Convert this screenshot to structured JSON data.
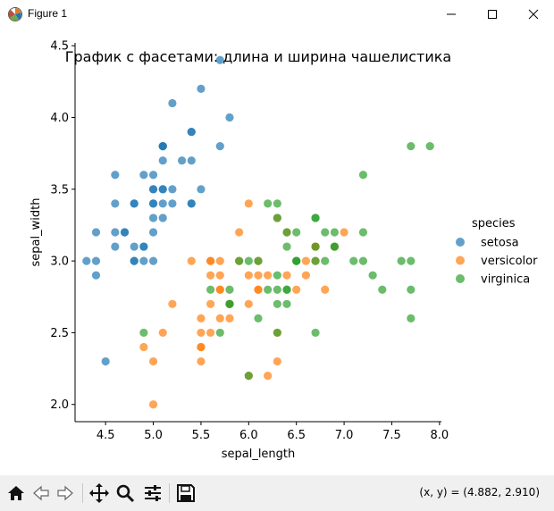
{
  "window": {
    "title": "Figure 1"
  },
  "toolbar": {
    "coords": "(x, y) = (4.882, 2.910)"
  },
  "colors": {
    "setosa": "#1f77b4",
    "versicolor": "#ff7f0e",
    "virginica": "#2ca02c"
  },
  "chart_data": {
    "type": "scatter",
    "title": "График с фасетами: длина и ширина чашелистика",
    "xlabel": "sepal_length",
    "ylabel": "sepal_width",
    "xlim": [
      4.18,
      8.02
    ],
    "ylim": [
      1.88,
      4.52
    ],
    "xticks": [
      "4.5",
      "5.0",
      "5.5",
      "6.0",
      "6.5",
      "7.0",
      "7.5",
      "8.0"
    ],
    "yticks": [
      "2.0",
      "2.5",
      "3.0",
      "3.5",
      "4.0",
      "4.5"
    ],
    "legend_title": "species",
    "legend_position": "right",
    "series": [
      {
        "name": "setosa",
        "points": [
          [
            5.1,
            3.5
          ],
          [
            4.9,
            3.0
          ],
          [
            4.7,
            3.2
          ],
          [
            4.6,
            3.1
          ],
          [
            5.0,
            3.6
          ],
          [
            5.4,
            3.9
          ],
          [
            4.6,
            3.4
          ],
          [
            5.0,
            3.4
          ],
          [
            4.4,
            2.9
          ],
          [
            4.9,
            3.1
          ],
          [
            5.4,
            3.7
          ],
          [
            4.8,
            3.4
          ],
          [
            4.8,
            3.0
          ],
          [
            4.3,
            3.0
          ],
          [
            5.8,
            4.0
          ],
          [
            5.7,
            4.4
          ],
          [
            5.4,
            3.9
          ],
          [
            5.1,
            3.5
          ],
          [
            5.7,
            3.8
          ],
          [
            5.1,
            3.8
          ],
          [
            5.4,
            3.4
          ],
          [
            5.1,
            3.7
          ],
          [
            4.6,
            3.6
          ],
          [
            5.1,
            3.3
          ],
          [
            4.8,
            3.4
          ],
          [
            5.0,
            3.0
          ],
          [
            5.0,
            3.4
          ],
          [
            5.2,
            3.5
          ],
          [
            5.2,
            3.4
          ],
          [
            4.7,
            3.2
          ],
          [
            4.8,
            3.1
          ],
          [
            5.4,
            3.4
          ],
          [
            5.2,
            4.1
          ],
          [
            5.5,
            4.2
          ],
          [
            4.9,
            3.1
          ],
          [
            5.0,
            3.2
          ],
          [
            5.5,
            3.5
          ],
          [
            4.9,
            3.6
          ],
          [
            4.4,
            3.0
          ],
          [
            5.1,
            3.4
          ],
          [
            5.0,
            3.5
          ],
          [
            4.5,
            2.3
          ],
          [
            4.4,
            3.2
          ],
          [
            5.0,
            3.5
          ],
          [
            5.1,
            3.8
          ],
          [
            4.8,
            3.0
          ],
          [
            5.1,
            3.8
          ],
          [
            4.6,
            3.2
          ],
          [
            5.3,
            3.7
          ],
          [
            5.0,
            3.3
          ]
        ]
      },
      {
        "name": "versicolor",
        "points": [
          [
            7.0,
            3.2
          ],
          [
            6.4,
            3.2
          ],
          [
            6.9,
            3.1
          ],
          [
            5.5,
            2.3
          ],
          [
            6.5,
            2.8
          ],
          [
            5.7,
            2.8
          ],
          [
            6.3,
            3.3
          ],
          [
            4.9,
            2.4
          ],
          [
            6.6,
            2.9
          ],
          [
            5.2,
            2.7
          ],
          [
            5.0,
            2.0
          ],
          [
            5.9,
            3.0
          ],
          [
            6.0,
            2.2
          ],
          [
            6.1,
            2.9
          ],
          [
            5.6,
            2.9
          ],
          [
            6.7,
            3.1
          ],
          [
            5.6,
            3.0
          ],
          [
            5.8,
            2.7
          ],
          [
            6.2,
            2.2
          ],
          [
            5.6,
            2.5
          ],
          [
            5.9,
            3.2
          ],
          [
            6.1,
            2.8
          ],
          [
            6.3,
            2.5
          ],
          [
            6.1,
            2.8
          ],
          [
            6.4,
            2.9
          ],
          [
            6.6,
            3.0
          ],
          [
            6.8,
            2.8
          ],
          [
            6.7,
            3.0
          ],
          [
            6.0,
            2.9
          ],
          [
            5.7,
            2.6
          ],
          [
            5.5,
            2.4
          ],
          [
            5.5,
            2.4
          ],
          [
            5.8,
            2.7
          ],
          [
            6.0,
            2.7
          ],
          [
            5.4,
            3.0
          ],
          [
            6.0,
            3.4
          ],
          [
            6.7,
            3.1
          ],
          [
            6.3,
            2.3
          ],
          [
            5.6,
            3.0
          ],
          [
            5.5,
            2.5
          ],
          [
            5.5,
            2.6
          ],
          [
            6.1,
            3.0
          ],
          [
            5.8,
            2.6
          ],
          [
            5.0,
            2.3
          ],
          [
            5.6,
            2.7
          ],
          [
            5.7,
            3.0
          ],
          [
            5.7,
            2.9
          ],
          [
            6.2,
            2.9
          ],
          [
            5.1,
            2.5
          ],
          [
            5.7,
            2.8
          ]
        ]
      },
      {
        "name": "virginica",
        "points": [
          [
            6.3,
            3.3
          ],
          [
            5.8,
            2.7
          ],
          [
            7.1,
            3.0
          ],
          [
            6.3,
            2.9
          ],
          [
            6.5,
            3.0
          ],
          [
            7.6,
            3.0
          ],
          [
            4.9,
            2.5
          ],
          [
            7.3,
            2.9
          ],
          [
            6.7,
            2.5
          ],
          [
            7.2,
            3.6
          ],
          [
            6.5,
            3.2
          ],
          [
            6.4,
            2.7
          ],
          [
            6.8,
            3.0
          ],
          [
            5.7,
            2.5
          ],
          [
            5.8,
            2.8
          ],
          [
            6.4,
            3.2
          ],
          [
            6.5,
            3.0
          ],
          [
            7.7,
            3.8
          ],
          [
            7.7,
            2.6
          ],
          [
            6.0,
            2.2
          ],
          [
            6.9,
            3.2
          ],
          [
            5.6,
            2.8
          ],
          [
            7.7,
            2.8
          ],
          [
            6.3,
            2.7
          ],
          [
            6.7,
            3.3
          ],
          [
            7.2,
            3.2
          ],
          [
            6.2,
            2.8
          ],
          [
            6.1,
            3.0
          ],
          [
            6.4,
            2.8
          ],
          [
            7.2,
            3.0
          ],
          [
            7.4,
            2.8
          ],
          [
            7.9,
            3.8
          ],
          [
            6.4,
            2.8
          ],
          [
            6.3,
            2.8
          ],
          [
            6.1,
            2.6
          ],
          [
            7.7,
            3.0
          ],
          [
            6.3,
            3.4
          ],
          [
            6.4,
            3.1
          ],
          [
            6.0,
            3.0
          ],
          [
            6.9,
            3.1
          ],
          [
            6.7,
            3.1
          ],
          [
            6.9,
            3.1
          ],
          [
            5.8,
            2.7
          ],
          [
            6.8,
            3.2
          ],
          [
            6.7,
            3.3
          ],
          [
            6.7,
            3.0
          ],
          [
            6.3,
            2.5
          ],
          [
            6.5,
            3.0
          ],
          [
            6.2,
            3.4
          ],
          [
            5.9,
            3.0
          ]
        ]
      }
    ]
  }
}
